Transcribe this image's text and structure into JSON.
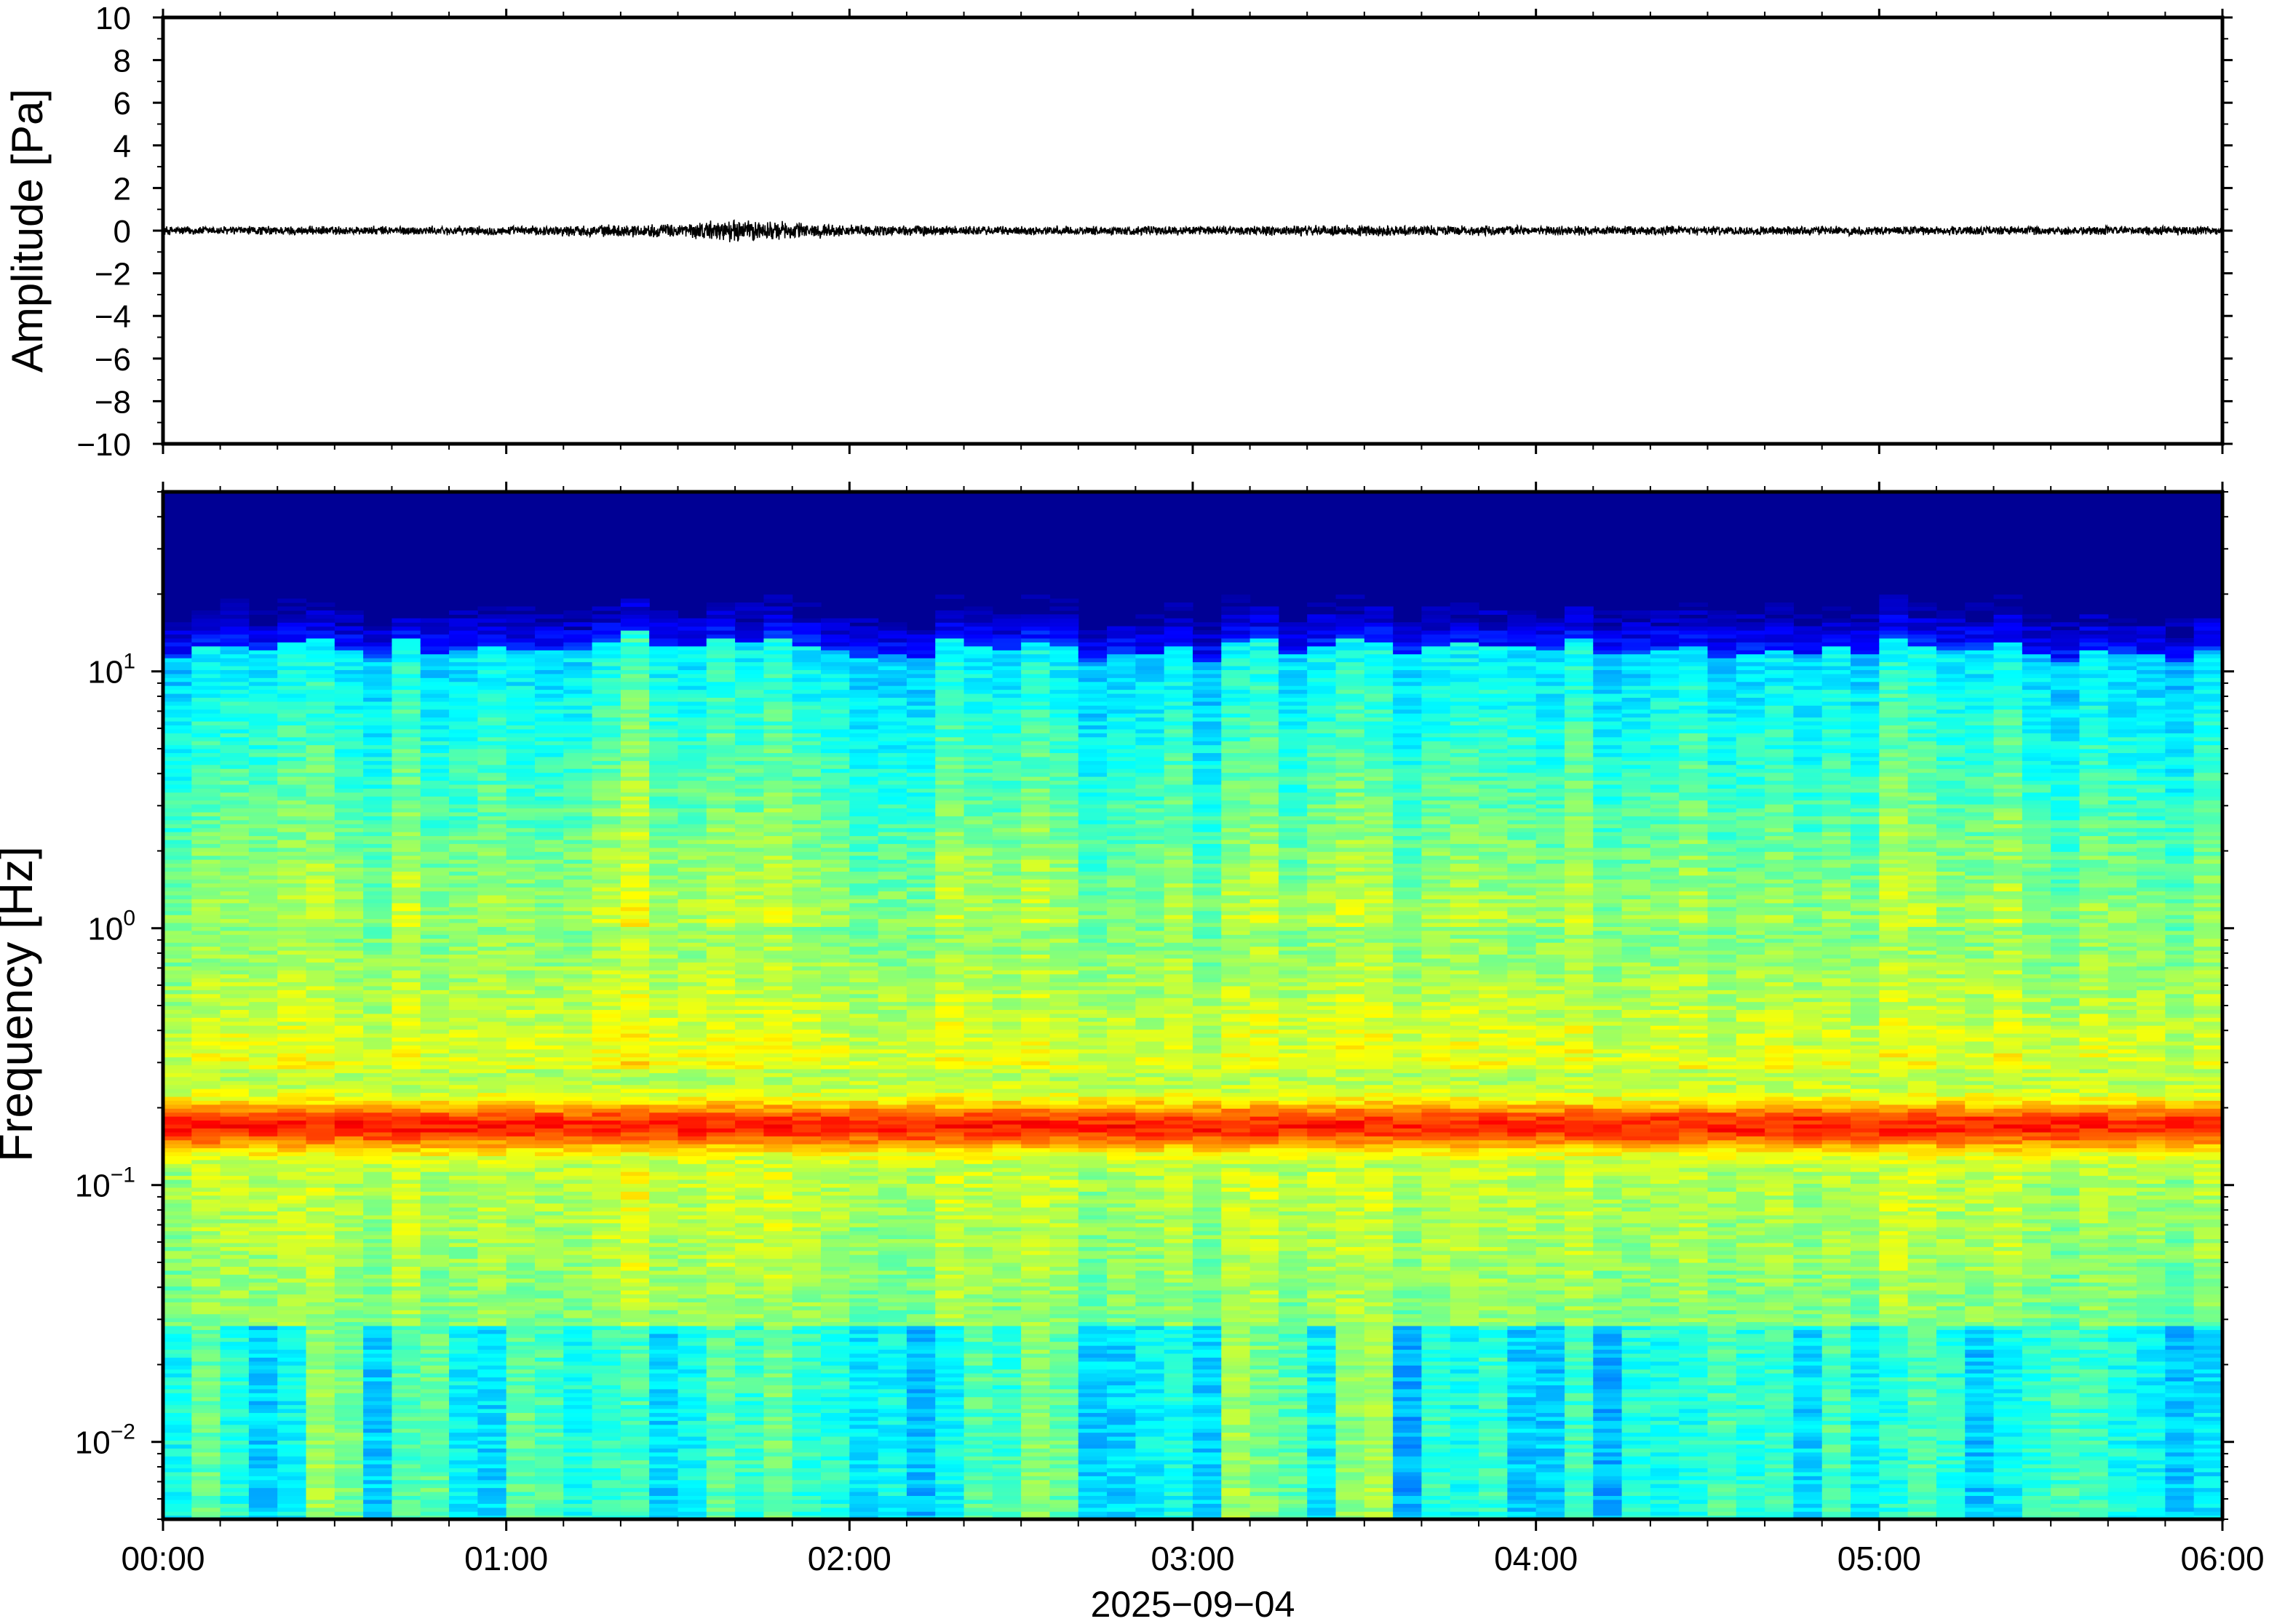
{
  "chart_data": [
    {
      "type": "line",
      "ylabel": "Amplitude [Pa]",
      "ylim": [
        -10,
        10
      ],
      "yticks": [
        -10,
        -8,
        -6,
        -4,
        -2,
        0,
        2,
        4,
        6,
        8,
        10
      ],
      "ytick_labels": [
        "−10",
        "−8",
        "−6",
        "−4",
        "−2",
        "0",
        "2",
        "4",
        "6",
        "8",
        "10"
      ],
      "xlim": [
        "00:00",
        "06:00"
      ],
      "series": [
        {
          "color": "#000000",
          "envelope_x_hours": [
            0.0,
            0.5,
            1.0,
            1.5,
            1.65,
            1.75,
            2.0,
            2.5,
            3.0,
            3.5,
            4.0,
            4.5,
            5.0,
            5.5,
            6.0
          ],
          "envelope_pa": [
            0.2,
            0.2,
            0.2,
            0.3,
            0.5,
            0.45,
            0.25,
            0.2,
            0.2,
            0.25,
            0.2,
            0.2,
            0.2,
            0.2,
            0.2
          ]
        }
      ],
      "grid": false
    },
    {
      "type": "heatmap",
      "xlabel": "2025−09−04",
      "ylabel": "Frequency [Hz]",
      "xlim": [
        "00:00",
        "06:00"
      ],
      "xticks": [
        "00:00",
        "01:00",
        "02:00",
        "03:00",
        "04:00",
        "05:00",
        "06:00"
      ],
      "yscale": "log",
      "ylim": [
        0.005,
        50
      ],
      "yticks": [
        0.01,
        0.1,
        1,
        10
      ],
      "ytick_labels": [
        {
          "base": "10",
          "exp": "−2"
        },
        {
          "base": "10",
          "exp": "−1"
        },
        {
          "base": "10",
          "exp": "0"
        },
        {
          "base": "10",
          "exp": "1"
        }
      ],
      "colormap": "jet",
      "microseism_peak_hz": 0.17,
      "grid": false
    }
  ]
}
